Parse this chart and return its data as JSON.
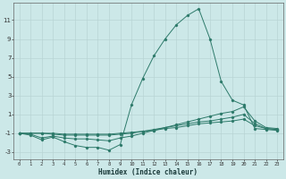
{
  "xlabel": "Humidex (Indice chaleur)",
  "background_color": "#cce8e8",
  "grid_color": "#b8d4d4",
  "line_color": "#2d7a6a",
  "xlim": [
    -0.5,
    23.5
  ],
  "ylim": [
    -3.8,
    12.8
  ],
  "x_ticks": [
    0,
    1,
    2,
    3,
    4,
    5,
    6,
    7,
    8,
    9,
    10,
    11,
    12,
    13,
    14,
    15,
    16,
    17,
    18,
    19,
    20,
    21,
    22,
    23
  ],
  "y_ticks": [
    -3,
    -1,
    1,
    3,
    5,
    7,
    9,
    11
  ],
  "series": [
    {
      "x": [
        0,
        1,
        2,
        3,
        4,
        5,
        6,
        7,
        8,
        9,
        10,
        11,
        12,
        13,
        14,
        15,
        16,
        17,
        18,
        19,
        20,
        21,
        22,
        23
      ],
      "y": [
        -1,
        -1.2,
        -1.7,
        -1.4,
        -1.9,
        -2.3,
        -2.5,
        -2.5,
        -2.8,
        -2.2,
        2.0,
        4.8,
        7.2,
        9.0,
        10.5,
        11.5,
        12.2,
        9.0,
        4.5,
        2.5,
        2.0,
        -0.5,
        -0.6,
        -0.7
      ]
    },
    {
      "x": [
        0,
        1,
        2,
        3,
        4,
        5,
        6,
        7,
        8,
        9,
        10,
        11,
        12,
        13,
        14,
        15,
        16,
        17,
        18,
        19,
        20,
        21,
        22,
        23
      ],
      "y": [
        -1,
        -1.1,
        -1.5,
        -1.3,
        -1.5,
        -1.6,
        -1.6,
        -1.7,
        -1.8,
        -1.5,
        -1.3,
        -1.0,
        -0.7,
        -0.4,
        -0.1,
        0.2,
        0.5,
        0.8,
        1.1,
        1.3,
        1.8,
        0.3,
        -0.4,
        -0.5
      ]
    },
    {
      "x": [
        0,
        1,
        2,
        3,
        4,
        5,
        6,
        7,
        8,
        9,
        10,
        11,
        12,
        13,
        14,
        15,
        16,
        17,
        18,
        19,
        20,
        21,
        22,
        23
      ],
      "y": [
        -1,
        -1.0,
        -1.0,
        -1.1,
        -1.2,
        -1.2,
        -1.2,
        -1.2,
        -1.2,
        -1.1,
        -1.0,
        -0.8,
        -0.6,
        -0.4,
        -0.2,
        0.0,
        0.2,
        0.3,
        0.5,
        0.7,
        1.0,
        0.0,
        -0.5,
        -0.6
      ]
    },
    {
      "x": [
        0,
        1,
        2,
        3,
        4,
        5,
        6,
        7,
        8,
        9,
        10,
        11,
        12,
        13,
        14,
        15,
        16,
        17,
        18,
        19,
        20,
        21,
        22,
        23
      ],
      "y": [
        -1,
        -1.0,
        -1.0,
        -1.0,
        -1.1,
        -1.1,
        -1.1,
        -1.1,
        -1.1,
        -1.0,
        -0.9,
        -0.8,
        -0.7,
        -0.5,
        -0.4,
        -0.2,
        0.0,
        0.1,
        0.2,
        0.3,
        0.5,
        -0.2,
        -0.5,
        -0.6
      ]
    }
  ]
}
